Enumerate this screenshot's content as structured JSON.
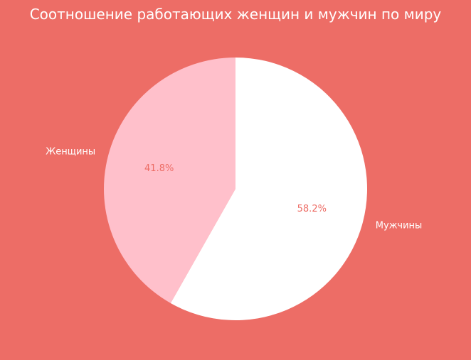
{
  "chart_data": {
    "type": "pie",
    "title": "Соотношение работающих женщин и мужчин по миру",
    "categories": [
      "Женщины",
      "Мужчины"
    ],
    "values": [
      41.8,
      58.2
    ],
    "value_labels": [
      "41.8%",
      "58.2%"
    ],
    "start_angle_deg": 90,
    "direction": "counterclockwise",
    "colors": [
      "#ffc0cb",
      "#ffffff"
    ],
    "background_color": "#ed6d66",
    "title_color": "#ffffff",
    "label_color": "#ffffff",
    "value_label_color": "#ed6d66",
    "legend": "none"
  }
}
